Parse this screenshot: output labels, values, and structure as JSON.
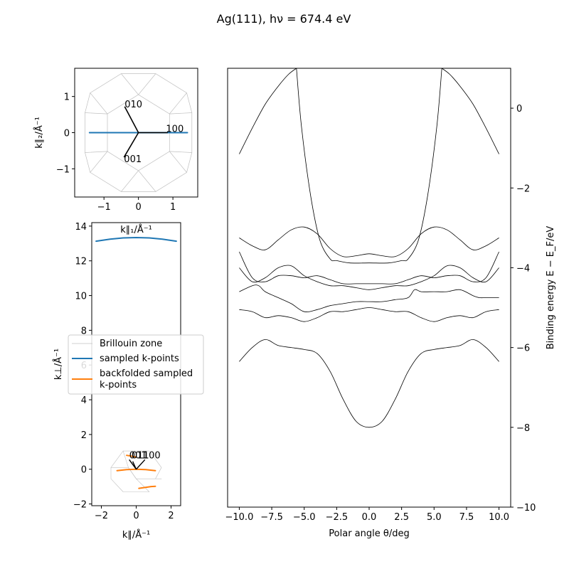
{
  "figure": {
    "title": "Ag(111), hν = 674.4 eV"
  },
  "colors": {
    "blue": "#1f77b4",
    "orange": "#ff7f0e",
    "bz_grey": "#c0c0c0",
    "band": "#000000"
  },
  "legend": {
    "items": [
      {
        "label": "Brillouin zone",
        "color": "#c0c0c0"
      },
      {
        "label": "sampled k-points",
        "color": "#1f77b4"
      },
      {
        "label": "backfolded sampled",
        "label2": "k-points",
        "color": "#ff7f0e"
      }
    ]
  },
  "chart_data": [
    {
      "id": "bz-parallel",
      "type": "line",
      "xlabel": "k∥₁/Å⁻¹",
      "ylabel": "k∥₂/Å⁻¹",
      "xlim": [
        -1.85,
        1.72
      ],
      "ylim": [
        -1.78,
        1.78
      ],
      "xticks": [
        -1,
        0,
        1
      ],
      "yticks": [
        -1,
        0,
        1
      ],
      "annotations": [
        {
          "text": "010",
          "x": -0.4,
          "y": 0.8,
          "ax": 0.0,
          "ay": 0.0
        },
        {
          "text": "100",
          "x": 0.85,
          "y": 0.08,
          "ax": 0.0,
          "ay": 0.0
        },
        {
          "text": "001",
          "x": -0.42,
          "y": -0.72,
          "ax": 0.0,
          "ay": 0.0
        }
      ],
      "series": [
        {
          "name": "sampled k-points",
          "color": "#1f77b4",
          "x": [
            -1.42,
            1.42
          ],
          "y": [
            0,
            0
          ]
        }
      ]
    },
    {
      "id": "bz-perp",
      "type": "line",
      "xlabel": "k∥/Å⁻¹",
      "ylabel": "k⊥/Å⁻¹",
      "xlim": [
        -2.55,
        2.55
      ],
      "ylim": [
        -2.1,
        14.2
      ],
      "xticks": [
        -2,
        0,
        2
      ],
      "yticks": [
        -2,
        0,
        2,
        4,
        6,
        8,
        10,
        12,
        14
      ],
      "annotations": [
        {
          "text": "001",
          "x": -0.45,
          "y": 0.55,
          "ax": 0.0,
          "ay": 0.0
        },
        {
          "text": "011",
          "x": -0.3,
          "y": 0.55,
          "ax": 0.0,
          "ay": 0.0
        },
        {
          "text": "100",
          "x": 0.45,
          "y": 0.55,
          "ax": 0.0,
          "ay": 0.0
        }
      ],
      "series": [
        {
          "name": "sampled k-points",
          "color": "#1f77b4",
          "x": [
            -2.3,
            -1.5,
            -0.75,
            0,
            0.75,
            1.5,
            2.3
          ],
          "y": [
            13.13,
            13.25,
            13.32,
            13.34,
            13.32,
            13.25,
            13.13
          ]
        },
        {
          "name": "backfolded sampled k-points",
          "color": "#ff7f0e",
          "x": [
            -0.55,
            -0.3,
            0.0
          ],
          "y": [
            0.8,
            0.76,
            0.7
          ]
        },
        {
          "name": "backfolded sampled k-points",
          "color": "#ff7f0e",
          "x": [
            -1.1,
            -0.55,
            0,
            0.55,
            1.1
          ],
          "y": [
            -0.08,
            -0.02,
            0.0,
            -0.02,
            -0.08
          ]
        },
        {
          "name": "backfolded sampled k-points",
          "color": "#ff7f0e",
          "x": [
            0.15,
            0.5,
            0.85,
            1.1
          ],
          "y": [
            -1.1,
            -1.05,
            -1.0,
            -0.98
          ]
        }
      ]
    },
    {
      "id": "bands",
      "type": "line",
      "xlabel": "Polar angle θ/deg",
      "ylabel": "Binding energy E − E_F/eV",
      "xlim": [
        -10.9,
        10.9
      ],
      "ylim": [
        -10.0,
        1.0
      ],
      "xticks": [
        -10.0,
        -7.5,
        -5.0,
        -2.5,
        0.0,
        2.5,
        5.0,
        7.5,
        10.0
      ],
      "yticks": [
        0,
        -2,
        -4,
        -6,
        -8,
        -10
      ],
      "series": [
        {
          "color": "#000000",
          "x": [
            -10.0,
            -9.0,
            -8.0,
            -7.0,
            -6.2,
            -5.6
          ],
          "y": [
            -1.15,
            -0.5,
            0.1,
            0.55,
            0.85,
            1.0
          ]
        },
        {
          "color": "#000000",
          "x": [
            -5.6,
            -5.2,
            -4.5,
            -3.8,
            -3.0,
            -2.5,
            -1.5,
            0.0,
            1.5,
            2.5,
            3.0,
            3.8,
            4.5,
            5.2,
            5.6
          ],
          "y": [
            1.0,
            -0.5,
            -2.2,
            -3.3,
            -3.78,
            -3.82,
            -3.88,
            -3.88,
            -3.88,
            -3.82,
            -3.78,
            -3.3,
            -2.2,
            -0.5,
            1.0
          ]
        },
        {
          "color": "#000000",
          "x": [
            5.6,
            6.2,
            7.0,
            8.0,
            9.0,
            10.0
          ],
          "y": [
            1.0,
            0.85,
            0.55,
            0.1,
            -0.5,
            -1.15
          ]
        },
        {
          "color": "#000000",
          "x": [
            -10.0,
            -9.0,
            -8.0,
            -7.0,
            -6.0,
            -5.0,
            -4.0,
            -3.0,
            -2.0,
            -1.0,
            0.0,
            1.0,
            2.0,
            3.0,
            4.0,
            5.0,
            6.0,
            7.0,
            8.0,
            9.0,
            10.0
          ],
          "y": [
            -3.25,
            -3.45,
            -3.55,
            -3.3,
            -3.05,
            -2.98,
            -3.15,
            -3.52,
            -3.72,
            -3.7,
            -3.65,
            -3.7,
            -3.72,
            -3.52,
            -3.15,
            -2.98,
            -3.05,
            -3.3,
            -3.55,
            -3.45,
            -3.25
          ]
        },
        {
          "color": "#000000",
          "x": [
            -10.0,
            -9.0,
            -8.0,
            -7.0,
            -6.0,
            -5.0,
            -4.0,
            -3.0,
            -2.0,
            -1.0,
            0.0,
            1.0,
            2.0,
            3.0,
            4.0,
            5.0,
            6.0,
            7.0,
            8.0,
            9.0,
            10.0
          ],
          "y": [
            -3.6,
            -4.25,
            -4.35,
            -4.2,
            -4.2,
            -4.25,
            -4.2,
            -4.3,
            -4.4,
            -4.4,
            -4.4,
            -4.4,
            -4.4,
            -4.3,
            -4.2,
            -4.25,
            -4.2,
            -4.2,
            -4.35,
            -4.25,
            -3.6
          ]
        },
        {
          "color": "#000000",
          "x": [
            -10.0,
            -9.0,
            -8.5,
            -8.0,
            -7.0,
            -6.0,
            -5.0,
            -4.0,
            -3.0,
            -2.0,
            -1.0,
            0.0,
            1.0,
            2.0,
            3.0,
            3.5,
            4.0,
            5.0,
            6.0,
            7.0,
            8.0,
            8.5,
            9.0,
            10.0
          ],
          "y": [
            -4.6,
            -4.45,
            -4.45,
            -4.6,
            -4.75,
            -4.9,
            -5.1,
            -5.05,
            -4.95,
            -4.9,
            -4.85,
            -4.85,
            -4.85,
            -4.8,
            -4.75,
            -4.55,
            -4.6,
            -4.6,
            -4.6,
            -4.55,
            -4.7,
            -4.75,
            -4.75,
            -4.75
          ]
        },
        {
          "color": "#000000",
          "x": [
            -10.0,
            -9.0,
            -8.0,
            -7.0,
            -6.0,
            -5.0,
            -4.0,
            -3.0,
            -2.0,
            -1.0,
            0.0,
            1.0,
            2.0,
            3.0,
            4.0,
            5.0,
            6.0,
            7.0,
            8.0,
            9.0,
            10.0
          ],
          "y": [
            -4.0,
            -4.35,
            -4.25,
            -4.0,
            -3.95,
            -4.2,
            -4.35,
            -4.45,
            -4.45,
            -4.5,
            -4.55,
            -4.5,
            -4.45,
            -4.45,
            -4.35,
            -4.2,
            -3.95,
            -4.0,
            -4.25,
            -4.35,
            -4.0
          ]
        },
        {
          "color": "#000000",
          "x": [
            -10.0,
            -9.0,
            -8.0,
            -7.0,
            -6.0,
            -5.0,
            -4.0,
            -3.0,
            -2.0,
            -1.0,
            0.0,
            1.0,
            2.0,
            3.0,
            4.0,
            5.0,
            6.0,
            7.0,
            8.0,
            9.0,
            10.0
          ],
          "y": [
            -5.05,
            -5.1,
            -5.25,
            -5.2,
            -5.25,
            -5.35,
            -5.25,
            -5.1,
            -5.1,
            -5.05,
            -5.0,
            -5.05,
            -5.1,
            -5.1,
            -5.25,
            -5.35,
            -5.25,
            -5.2,
            -5.25,
            -5.1,
            -5.05
          ]
        },
        {
          "color": "#000000",
          "x": [
            -10.0,
            -9.0,
            -8.0,
            -7.0,
            -6.0,
            -5.0,
            -4.0,
            -3.0,
            -2.0,
            -1.0,
            0.0,
            1.0,
            2.0,
            3.0,
            4.0,
            5.0,
            6.0,
            7.0,
            8.0,
            9.0,
            10.0
          ],
          "y": [
            -6.35,
            -6.0,
            -5.8,
            -5.95,
            -6.0,
            -6.05,
            -6.15,
            -6.6,
            -7.3,
            -7.85,
            -8.0,
            -7.85,
            -7.3,
            -6.6,
            -6.15,
            -6.05,
            -6.0,
            -5.95,
            -5.8,
            -6.0,
            -6.35
          ]
        }
      ]
    }
  ]
}
